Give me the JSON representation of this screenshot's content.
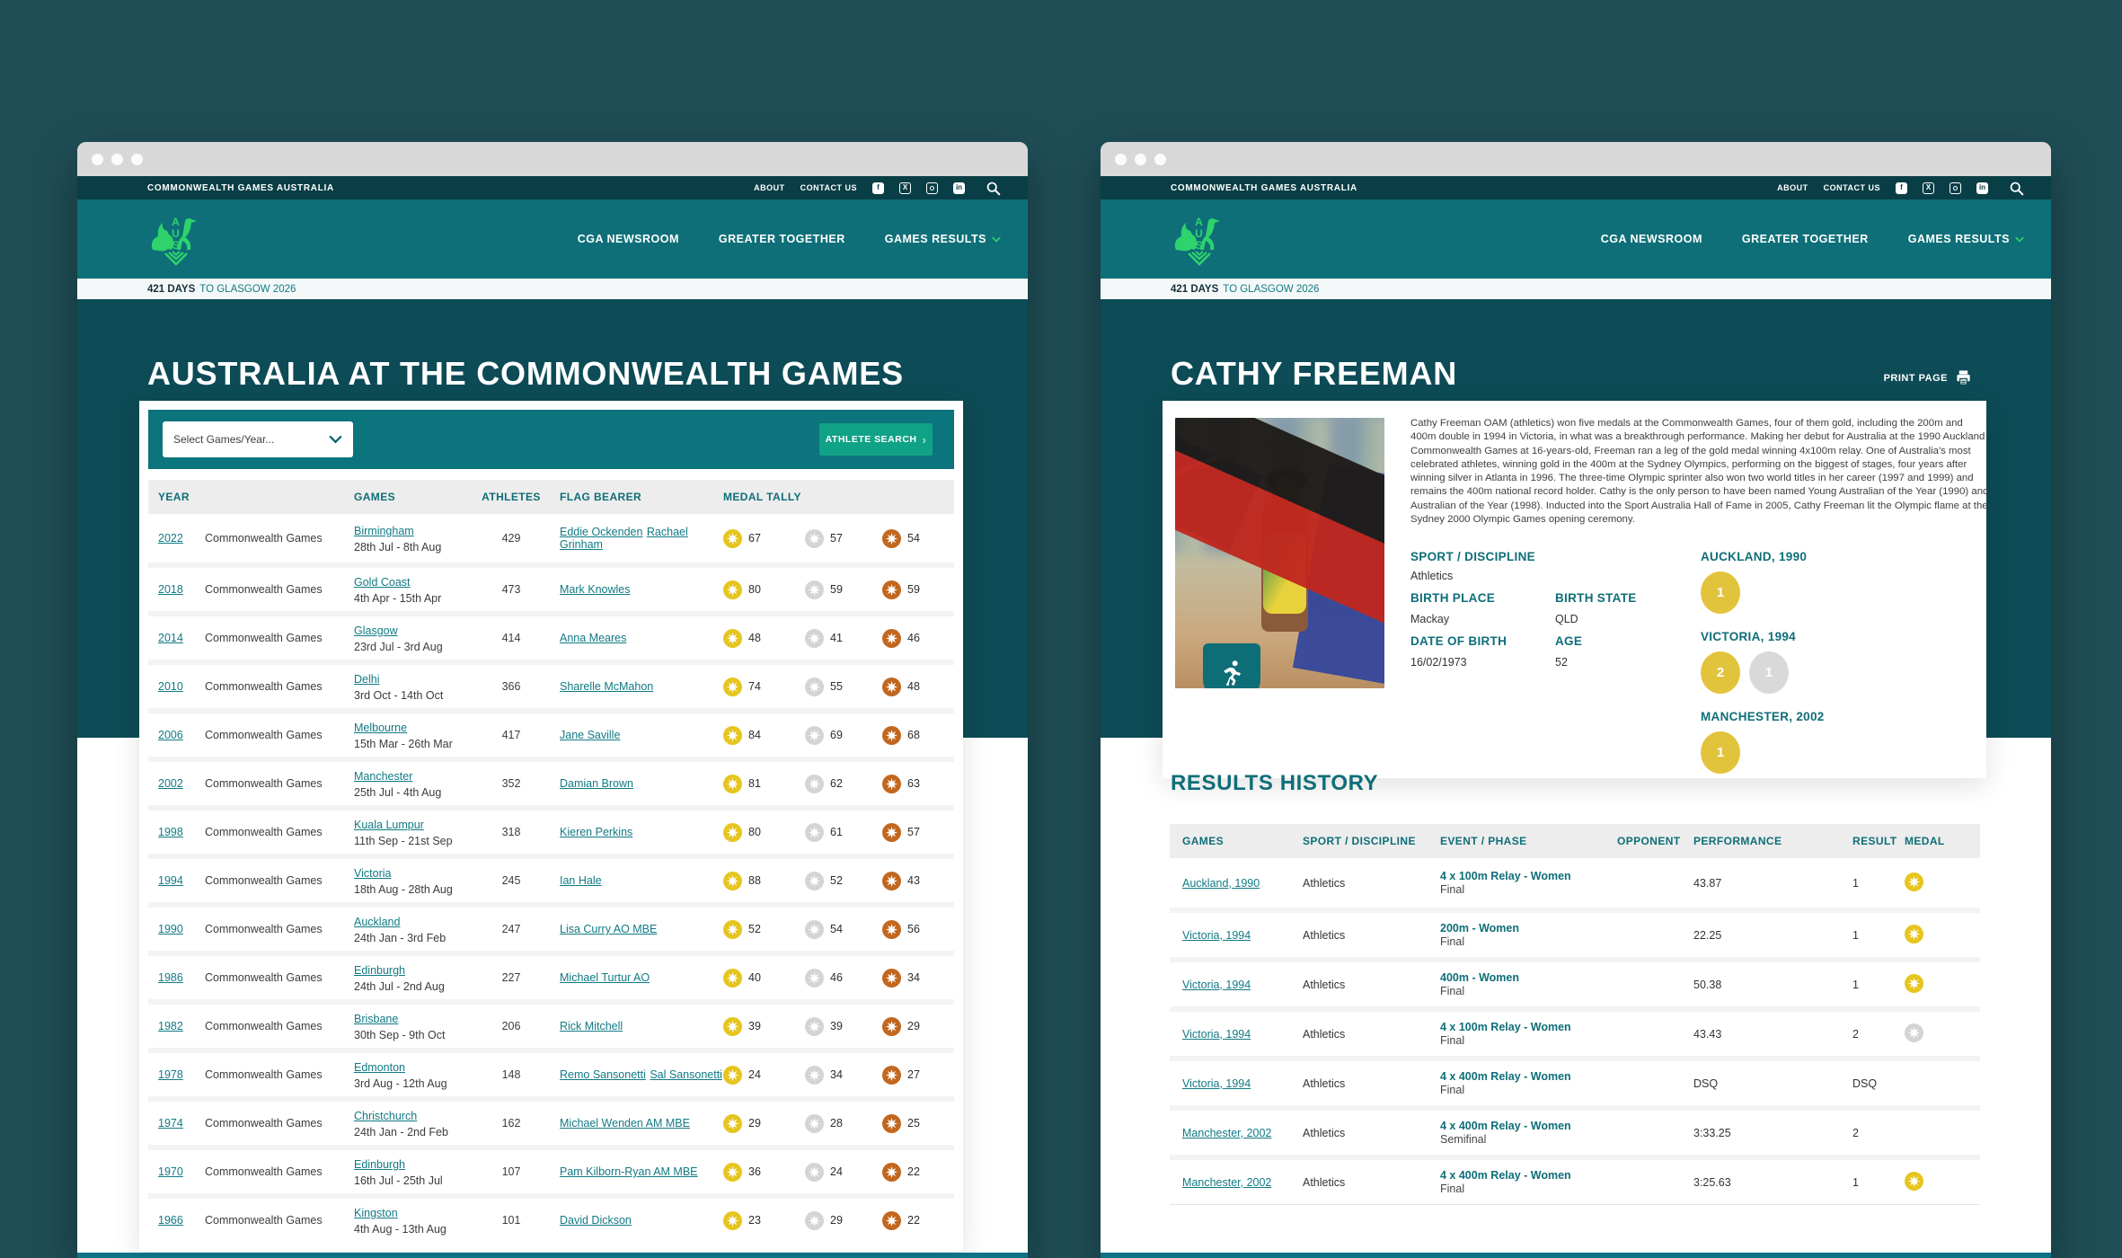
{
  "colors": {
    "outer": "#1F4E57",
    "utility_bar": "#0A3E46",
    "header": "#0E6F78",
    "hero": "#0D4B56",
    "accent": "#117A84",
    "green": "#2ED36B",
    "button": "#10A287",
    "gold": "#E6C51E",
    "silver": "#D4D4D4",
    "bronze": "#C2671F"
  },
  "chrome": {
    "brand": "COMMONWEALTH GAMES AUSTRALIA",
    "utility_links": [
      "ABOUT",
      "CONTACT US"
    ],
    "social_icons": [
      "facebook-icon",
      "x-icon",
      "instagram-icon",
      "linkedin-icon",
      "search-icon"
    ],
    "nav_links": [
      "CGA NEWSROOM",
      "GREATER TOGETHER",
      "GAMES RESULTS"
    ],
    "countdown": {
      "strong": "421 DAYS",
      "rest": "TO GLASGOW 2026"
    }
  },
  "left_page": {
    "title": "AUSTRALIA AT THE COMMONWEALTH GAMES",
    "filter": {
      "select_value": "Select Games/Year...",
      "search_button": "ATHLETE SEARCH"
    },
    "table_headers": {
      "year": "YEAR",
      "games": "GAMES",
      "athletes": "ATHLETES",
      "flag_bearer": "FLAG BEARER",
      "medal_tally": "MEDAL TALLY"
    },
    "rows": [
      {
        "year": "2022",
        "games": "Commonwealth Games",
        "city": "Birmingham",
        "dates": "28th Jul - 8th Aug",
        "athletes": "429",
        "flag_bearers": [
          "Eddie Ockenden",
          "Rachael Grinham"
        ],
        "gold": "67",
        "silver": "57",
        "bronze": "54"
      },
      {
        "year": "2018",
        "games": "Commonwealth Games",
        "city": "Gold Coast",
        "dates": "4th Apr - 15th Apr",
        "athletes": "473",
        "flag_bearers": [
          "Mark Knowles"
        ],
        "gold": "80",
        "silver": "59",
        "bronze": "59"
      },
      {
        "year": "2014",
        "games": "Commonwealth Games",
        "city": "Glasgow",
        "dates": "23rd Jul - 3rd Aug",
        "athletes": "414",
        "flag_bearers": [
          "Anna Meares"
        ],
        "gold": "48",
        "silver": "41",
        "bronze": "46"
      },
      {
        "year": "2010",
        "games": "Commonwealth Games",
        "city": "Delhi",
        "dates": "3rd Oct - 14th Oct",
        "athletes": "366",
        "flag_bearers": [
          "Sharelle McMahon"
        ],
        "gold": "74",
        "silver": "55",
        "bronze": "48"
      },
      {
        "year": "2006",
        "games": "Commonwealth Games",
        "city": "Melbourne",
        "dates": "15th Mar - 26th Mar",
        "athletes": "417",
        "flag_bearers": [
          "Jane Saville"
        ],
        "gold": "84",
        "silver": "69",
        "bronze": "68"
      },
      {
        "year": "2002",
        "games": "Commonwealth Games",
        "city": "Manchester",
        "dates": "25th Jul - 4th Aug",
        "athletes": "352",
        "flag_bearers": [
          "Damian Brown"
        ],
        "gold": "81",
        "silver": "62",
        "bronze": "63"
      },
      {
        "year": "1998",
        "games": "Commonwealth Games",
        "city": "Kuala Lumpur",
        "dates": "11th Sep - 21st Sep",
        "athletes": "318",
        "flag_bearers": [
          "Kieren Perkins"
        ],
        "gold": "80",
        "silver": "61",
        "bronze": "57"
      },
      {
        "year": "1994",
        "games": "Commonwealth Games",
        "city": "Victoria",
        "dates": "18th Aug - 28th Aug",
        "athletes": "245",
        "flag_bearers": [
          "Ian Hale"
        ],
        "gold": "88",
        "silver": "52",
        "bronze": "43"
      },
      {
        "year": "1990",
        "games": "Commonwealth Games",
        "city": "Auckland",
        "dates": "24th Jan - 3rd Feb",
        "athletes": "247",
        "flag_bearers": [
          "Lisa Curry AO MBE"
        ],
        "gold": "52",
        "silver": "54",
        "bronze": "56"
      },
      {
        "year": "1986",
        "games": "Commonwealth Games",
        "city": "Edinburgh",
        "dates": "24th Jul - 2nd Aug",
        "athletes": "227",
        "flag_bearers": [
          "Michael Turtur AO"
        ],
        "gold": "40",
        "silver": "46",
        "bronze": "34"
      },
      {
        "year": "1982",
        "games": "Commonwealth Games",
        "city": "Brisbane",
        "dates": "30th Sep - 9th Oct",
        "athletes": "206",
        "flag_bearers": [
          "Rick Mitchell"
        ],
        "gold": "39",
        "silver": "39",
        "bronze": "29"
      },
      {
        "year": "1978",
        "games": "Commonwealth Games",
        "city": "Edmonton",
        "dates": "3rd Aug - 12th Aug",
        "athletes": "148",
        "flag_bearers": [
          "Remo Sansonetti",
          "Sal Sansonetti"
        ],
        "gold": "24",
        "silver": "34",
        "bronze": "27"
      },
      {
        "year": "1974",
        "games": "Commonwealth Games",
        "city": "Christchurch",
        "dates": "24th Jan - 2nd Feb",
        "athletes": "162",
        "flag_bearers": [
          "Michael Wenden AM MBE"
        ],
        "gold": "29",
        "silver": "28",
        "bronze": "25"
      },
      {
        "year": "1970",
        "games": "Commonwealth Games",
        "city": "Edinburgh",
        "dates": "16th Jul - 25th Jul",
        "athletes": "107",
        "flag_bearers": [
          "Pam Kilborn-Ryan AM MBE"
        ],
        "gold": "36",
        "silver": "24",
        "bronze": "22"
      },
      {
        "year": "1966",
        "games": "Commonwealth Games",
        "city": "Kingston",
        "dates": "4th Aug - 13th Aug",
        "athletes": "101",
        "flag_bearers": [
          "David Dickson"
        ],
        "gold": "23",
        "silver": "29",
        "bronze": "22"
      }
    ]
  },
  "right_page": {
    "title": "CATHY FREEMAN",
    "print_label": "PRINT PAGE",
    "bio": "Cathy Freeman OAM (athletics) won five medals at the Commonwealth Games, four of them gold, including the 200m and 400m double in 1994 in Victoria, in what was a breakthrough performance. Making her debut for Australia at the 1990 Auckland Commonwealth Games at 16-years-old, Freeman ran a leg of the gold medal winning 4x100m relay. One of Australia's most celebrated athletes, winning gold in the 400m at the Sydney Olympics, performing on the biggest of stages, four years after winning silver in Atlanta in 1996. The three-time Olympic sprinter also won two world titles in her career (1997 and 1999) and remains the 400m national record holder. Cathy is the only person to have been named Young Australian of the Year (1990) and Australian of the Year (1998). Inducted into the Sport Australia Hall of Fame in 2005, Cathy Freeman lit the Olympic flame at the Sydney 2000 Olympic Games opening ceremony.",
    "details": {
      "sport_label": "SPORT / DISCIPLINE",
      "sport": "Athletics",
      "birth_place_label": "BIRTH PLACE",
      "birth_place": "Mackay",
      "birth_state_label": "BIRTH STATE",
      "birth_state": "QLD",
      "dob_label": "DATE OF BIRTH",
      "dob": "16/02/1973",
      "age_label": "AGE",
      "age": "52"
    },
    "medal_groups": [
      {
        "games": "AUCKLAND, 1990",
        "medals": [
          {
            "type": "gold",
            "count": "1"
          }
        ]
      },
      {
        "games": "VICTORIA, 1994",
        "medals": [
          {
            "type": "gold",
            "count": "2"
          },
          {
            "type": "silver",
            "count": "1"
          }
        ]
      },
      {
        "games": "MANCHESTER, 2002",
        "medals": [
          {
            "type": "gold",
            "count": "1"
          }
        ]
      }
    ],
    "results_heading": "RESULTS HISTORY",
    "results_headers": {
      "games": "GAMES",
      "sport": "SPORT / DISCIPLINE",
      "event": "EVENT / PHASE",
      "opponent": "OPPONENT",
      "performance": "PERFORMANCE",
      "result": "RESULT",
      "medal": "MEDAL"
    },
    "results_rows": [
      {
        "games": "Auckland, 1990",
        "sport": "Athletics",
        "event": "4 x 100m Relay - Women",
        "phase": "Final",
        "opponent": "",
        "performance": "43.87",
        "result": "1",
        "medal": "gold"
      },
      {
        "games": "Victoria, 1994",
        "sport": "Athletics",
        "event": "200m - Women",
        "phase": "Final",
        "opponent": "",
        "performance": "22.25",
        "result": "1",
        "medal": "gold"
      },
      {
        "games": "Victoria, 1994",
        "sport": "Athletics",
        "event": "400m - Women",
        "phase": "Final",
        "opponent": "",
        "performance": "50.38",
        "result": "1",
        "medal": "gold"
      },
      {
        "games": "Victoria, 1994",
        "sport": "Athletics",
        "event": "4 x 100m Relay - Women",
        "phase": "Final",
        "opponent": "",
        "performance": "43.43",
        "result": "2",
        "medal": "silver"
      },
      {
        "games": "Victoria, 1994",
        "sport": "Athletics",
        "event": "4 x 400m Relay - Women",
        "phase": "Final",
        "opponent": "",
        "performance": "DSQ",
        "result": "DSQ",
        "medal": ""
      },
      {
        "games": "Manchester, 2002",
        "sport": "Athletics",
        "event": "4 x 400m Relay - Women",
        "phase": "Semifinal",
        "opponent": "",
        "performance": "3:33.25",
        "result": "2",
        "medal": ""
      },
      {
        "games": "Manchester, 2002",
        "sport": "Athletics",
        "event": "4 x 400m Relay - Women",
        "phase": "Final",
        "opponent": "",
        "performance": "3:25.63",
        "result": "1",
        "medal": "gold"
      }
    ]
  }
}
